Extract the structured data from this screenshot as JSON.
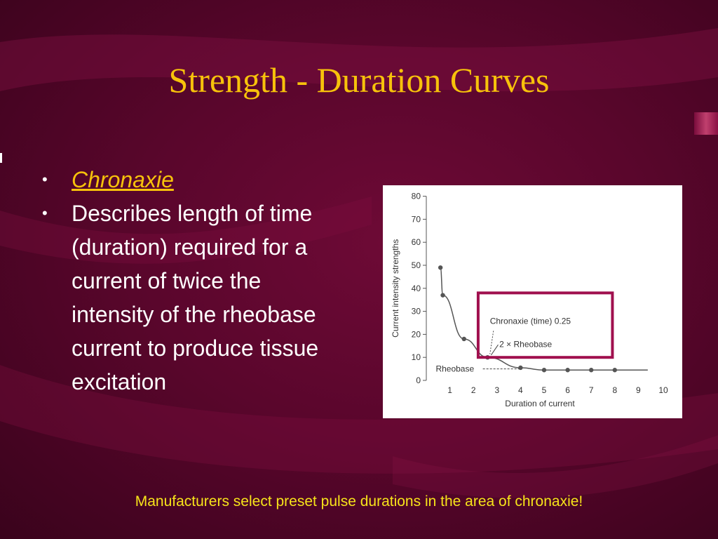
{
  "slide": {
    "title": "Strength - Duration Curves",
    "bullets": [
      {
        "text": "Chronaxie",
        "style": "link"
      },
      {
        "text": "Describes length of time (duration) required for a current of twice the intensity of the rheobase current to produce tissue excitation",
        "style": "plain"
      }
    ],
    "bullet_symbol": "•",
    "footer": "Manufacturers select preset pulse durations in the area of chronaxie!",
    "colors": {
      "title": "#f7c20b",
      "footer": "#f7e41a",
      "background": "#5a062c",
      "box": "#a0104e"
    }
  },
  "chart_data": {
    "type": "line",
    "xlabel": "Duration of current",
    "ylabel": "Current intensity strengths",
    "xlim": [
      0,
      10
    ],
    "ylim": [
      0,
      80
    ],
    "x_ticks": [
      1,
      2,
      3,
      4,
      5,
      6,
      7,
      8,
      9,
      10
    ],
    "y_ticks": [
      0,
      10,
      20,
      30,
      40,
      50,
      60,
      70,
      80
    ],
    "series": [
      {
        "x": [
          0.6,
          0.7,
          1.6,
          2.6,
          4.0,
          5.0,
          6.0,
          7.0,
          8.0
        ],
        "values": [
          49,
          37,
          18,
          10,
          5.5,
          4.5,
          4.5,
          4.5,
          4.5
        ]
      }
    ],
    "rheobase_level": 5,
    "annotations": [
      {
        "text": "Rheobase"
      },
      {
        "text": "Chronaxie (time) 0.25"
      },
      {
        "text": "2 × Rheobase"
      }
    ]
  }
}
